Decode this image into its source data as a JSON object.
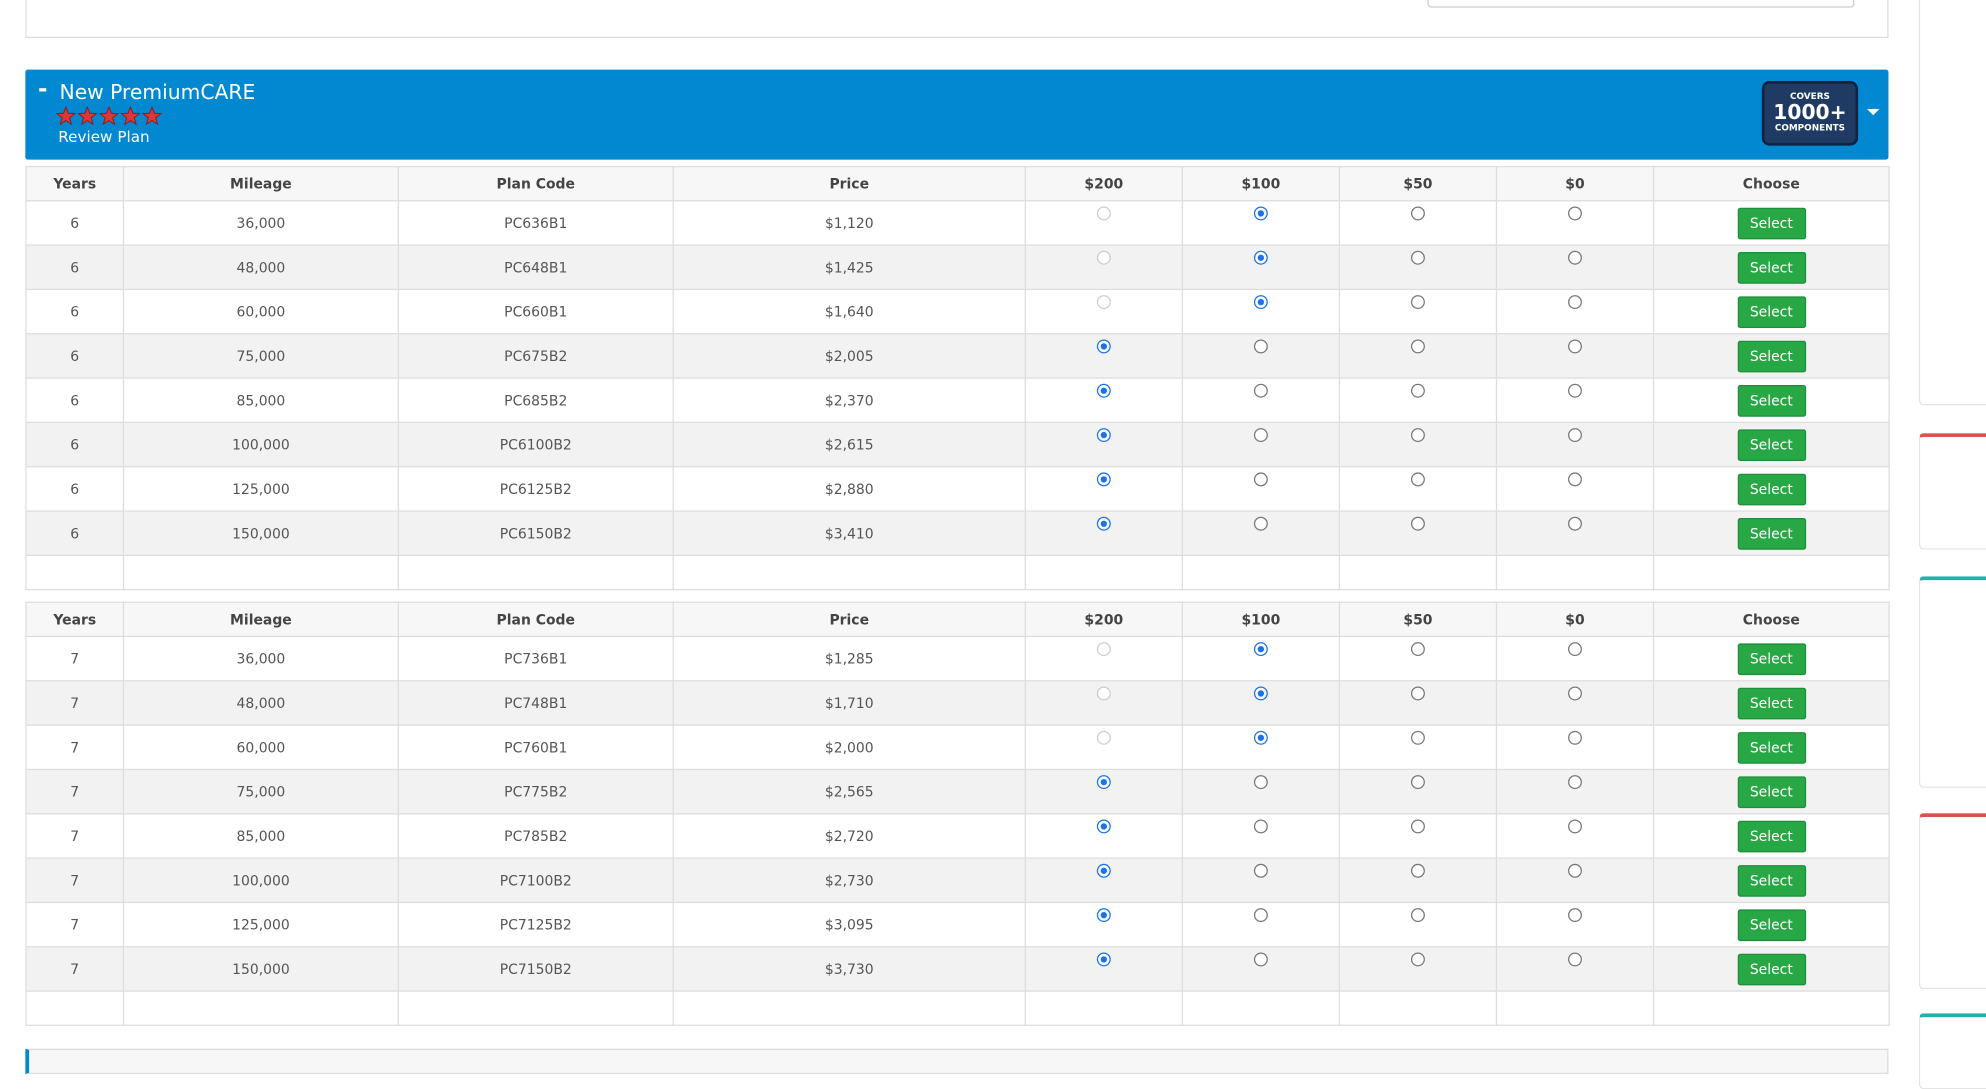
{
  "header": {
    "title": "New PremiumCARE",
    "rating": 5,
    "link": "Review Plan",
    "badge": [
      "COVERS",
      "1000+",
      "COMPONENTS"
    ]
  },
  "tables": [
    {
      "columns": [
        "Years",
        "Mileage",
        "Plan Code",
        "Price",
        "$200",
        "$100",
        "$50",
        "$0",
        "Choose"
      ],
      "button": "Select",
      "rows": [
        {
          "cells": [
            "6",
            "36,000",
            "PC636B1",
            "$1,120"
          ],
          "checked": 1,
          "disabled": [
            0
          ]
        },
        {
          "cells": [
            "6",
            "48,000",
            "PC648B1",
            "$1,425"
          ],
          "checked": 1,
          "disabled": [
            0
          ]
        },
        {
          "cells": [
            "6",
            "60,000",
            "PC660B1",
            "$1,640"
          ],
          "checked": 1,
          "disabled": [
            0
          ]
        },
        {
          "cells": [
            "6",
            "75,000",
            "PC675B2",
            "$2,005"
          ],
          "checked": 0,
          "disabled": []
        },
        {
          "cells": [
            "6",
            "85,000",
            "PC685B2",
            "$2,370"
          ],
          "checked": 0,
          "disabled": []
        },
        {
          "cells": [
            "6",
            "100,000",
            "PC6100B2",
            "$2,615"
          ],
          "checked": 0,
          "disabled": []
        },
        {
          "cells": [
            "6",
            "125,000",
            "PC6125B2",
            "$2,880"
          ],
          "checked": 0,
          "disabled": []
        },
        {
          "cells": [
            "6",
            "150,000",
            "PC6150B2",
            "$3,410"
          ],
          "checked": 0,
          "disabled": []
        }
      ]
    },
    {
      "columns": [
        "Years",
        "Mileage",
        "Plan Code",
        "Price",
        "$200",
        "$100",
        "$50",
        "$0",
        "Choose"
      ],
      "button": "Select",
      "rows": [
        {
          "cells": [
            "7",
            "36,000",
            "PC736B1",
            "$1,285"
          ],
          "checked": 1,
          "disabled": [
            0
          ]
        },
        {
          "cells": [
            "7",
            "48,000",
            "PC748B1",
            "$1,710"
          ],
          "checked": 1,
          "disabled": [
            0
          ]
        },
        {
          "cells": [
            "7",
            "60,000",
            "PC760B1",
            "$2,000"
          ],
          "checked": 1,
          "disabled": [
            0
          ]
        },
        {
          "cells": [
            "7",
            "75,000",
            "PC775B2",
            "$2,565"
          ],
          "checked": 0,
          "disabled": []
        },
        {
          "cells": [
            "7",
            "85,000",
            "PC785B2",
            "$2,720"
          ],
          "checked": 0,
          "disabled": []
        },
        {
          "cells": [
            "7",
            "100,000",
            "PC7100B2",
            "$2,730"
          ],
          "checked": 0,
          "disabled": []
        },
        {
          "cells": [
            "7",
            "125,000",
            "PC7125B2",
            "$3,095"
          ],
          "checked": 0,
          "disabled": []
        },
        {
          "cells": [
            "7",
            "150,000",
            "PC7150B2",
            "$3,730"
          ],
          "checked": 0,
          "disabled": []
        }
      ]
    }
  ]
}
